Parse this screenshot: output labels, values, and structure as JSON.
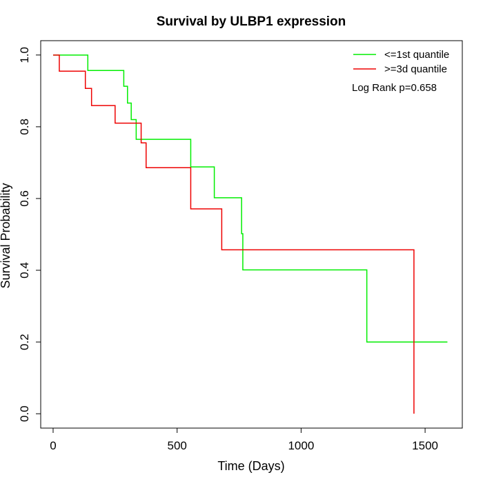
{
  "chart_data": {
    "type": "line",
    "title": "Survival by ULBP1 expression",
    "xlabel": "Time (Days)",
    "ylabel": "Survival Probability",
    "xlim": [
      -50,
      1650
    ],
    "ylim": [
      -0.04,
      1.04
    ],
    "xticks": [
      0,
      500,
      1000,
      1500
    ],
    "yticks": [
      0.0,
      0.2,
      0.4,
      0.6,
      0.8,
      1.0
    ],
    "xtick_labels": [
      "0",
      "500",
      "1000",
      "1500"
    ],
    "ytick_labels": [
      "0.0",
      "0.2",
      "0.4",
      "0.6",
      "0.8",
      "1.0"
    ],
    "grid": false,
    "legend_position": "top-right",
    "annotation": "Log Rank p=0.658",
    "series": [
      {
        "name": "<=1st quantile",
        "color": "#00ee00",
        "step": true,
        "x": [
          0,
          140,
          285,
          300,
          315,
          335,
          385,
          555,
          650,
          760,
          765,
          1265,
          1590
        ],
        "y": [
          1.0,
          0.957,
          0.913,
          0.866,
          0.82,
          0.765,
          0.765,
          0.688,
          0.602,
          0.502,
          0.401,
          0.2,
          0.2
        ]
      },
      {
        "name": ">=3d quantile",
        "color": "#ee0000",
        "step": true,
        "x": [
          0,
          25,
          130,
          155,
          250,
          355,
          375,
          555,
          680,
          1455,
          1455
        ],
        "y": [
          1.0,
          0.955,
          0.907,
          0.859,
          0.81,
          0.755,
          0.686,
          0.571,
          0.457,
          0.457,
          0.0
        ]
      }
    ]
  }
}
